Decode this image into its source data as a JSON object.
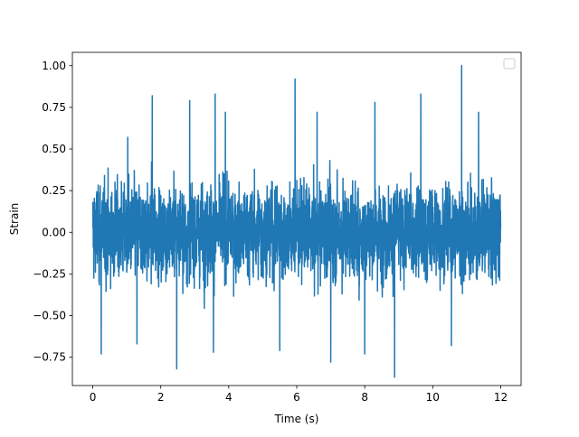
{
  "chart_data": {
    "type": "line",
    "title": "",
    "xlabel": "Time (s)",
    "ylabel": "Strain",
    "xlim": [
      -0.6,
      12.6
    ],
    "ylim": [
      -0.92,
      1.08
    ],
    "xticks": [
      0,
      2,
      4,
      6,
      8,
      10,
      12
    ],
    "xtick_labels": [
      "0",
      "2",
      "4",
      "6",
      "8",
      "10",
      "12"
    ],
    "yticks": [
      -0.75,
      -0.5,
      -0.25,
      0.0,
      0.25,
      0.5,
      0.75,
      1.0
    ],
    "ytick_labels": [
      "−0.75",
      "−0.50",
      "−0.25",
      "0.00",
      "0.25",
      "0.50",
      "0.75",
      "1.00"
    ],
    "grid": false,
    "legend": {
      "placement": "top-right",
      "entries": []
    },
    "series": [
      {
        "color": "#1f77b4",
        "x_range": [
          0,
          12
        ],
        "typical_range": [
          -0.5,
          0.5
        ],
        "peaks": [
          {
            "x": 0.25,
            "y": 0.69
          },
          {
            "x": 1.03,
            "y": 0.57
          },
          {
            "x": 1.75,
            "y": 0.82
          },
          {
            "x": 2.85,
            "y": 0.79
          },
          {
            "x": 3.6,
            "y": 0.83
          },
          {
            "x": 3.9,
            "y": 0.72
          },
          {
            "x": 5.95,
            "y": 0.92
          },
          {
            "x": 6.6,
            "y": 0.72
          },
          {
            "x": 7.0,
            "y": 0.81
          },
          {
            "x": 8.3,
            "y": 0.78
          },
          {
            "x": 9.65,
            "y": 0.83
          },
          {
            "x": 10.85,
            "y": 1.0
          },
          {
            "x": 11.35,
            "y": 0.72
          }
        ],
        "troughs": [
          {
            "x": 0.25,
            "y": -0.73
          },
          {
            "x": 1.3,
            "y": -0.67
          },
          {
            "x": 2.47,
            "y": -0.82
          },
          {
            "x": 3.55,
            "y": -0.72
          },
          {
            "x": 5.5,
            "y": -0.71
          },
          {
            "x": 7.0,
            "y": -0.78
          },
          {
            "x": 8.0,
            "y": -0.73
          },
          {
            "x": 8.88,
            "y": -0.87
          },
          {
            "x": 10.55,
            "y": -0.68
          }
        ]
      }
    ]
  }
}
